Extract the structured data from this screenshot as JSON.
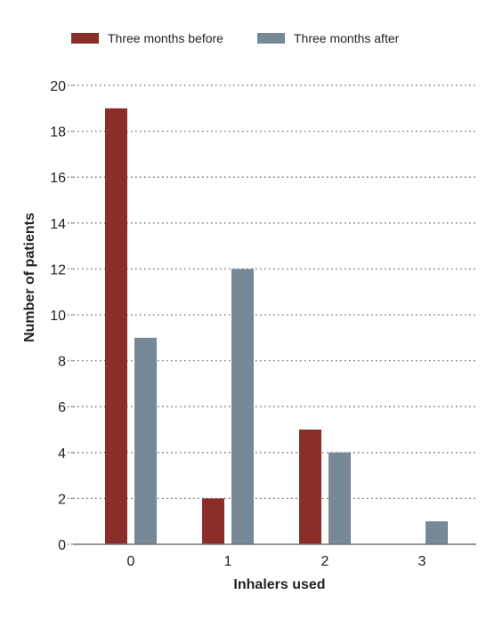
{
  "chart_data": {
    "type": "bar",
    "xlabel": "Inhalers used",
    "ylabel": "Number of patients",
    "categories": [
      "0",
      "1",
      "2",
      "3"
    ],
    "series": [
      {
        "name": "Three months before",
        "values": [
          19,
          2,
          5,
          0
        ],
        "color": "#8b2e2a"
      },
      {
        "name": "Three months after",
        "values": [
          9,
          12,
          4,
          1
        ],
        "color": "#778896"
      }
    ],
    "ylim": [
      0,
      20
    ],
    "yticks": [
      0,
      2,
      4,
      6,
      8,
      10,
      12,
      14,
      16,
      18,
      20
    ],
    "grid": "dotted horizontal",
    "legend_position": "top-left"
  }
}
